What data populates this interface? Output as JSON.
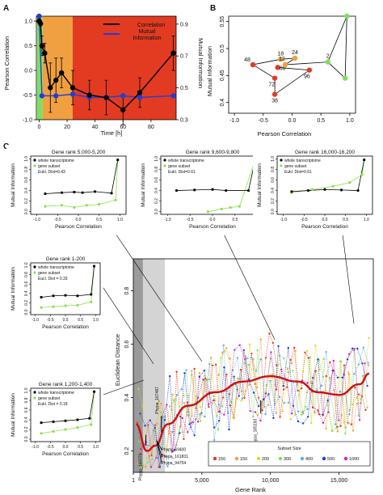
{
  "colors": {
    "correlation": "#000000",
    "mutual_information": "#1f3fd6",
    "green_zone": "#7be05c",
    "orange_zone": "#f0a040",
    "red_zone": "#e23b22",
    "whole": "#000000",
    "subset": "#8ee04a",
    "smooth": "#cc1111",
    "band_dark": "#9a9a9a",
    "band_light": "#d4d4d4"
  },
  "panel_labels": {
    "a": "A",
    "b": "B",
    "c": "C"
  },
  "chart_data": [
    {
      "id": "A",
      "type": "line",
      "xlabel": "Time [h]",
      "ylabel": "Pearson Correlation",
      "ylabel2": "Mutual Information",
      "xlim": [
        -2,
        98
      ],
      "ylim": [
        -1.0,
        1.1
      ],
      "ylim2": [
        0.3,
        0.95
      ],
      "x_ticks": [
        0,
        20,
        40,
        60,
        80
      ],
      "y_ticks": [
        -1.0,
        -0.5,
        0.0,
        0.5,
        1.0
      ],
      "y2_ticks": [
        0.3,
        0.5,
        0.7,
        0.9
      ],
      "legend": {
        "position": "top-right",
        "entries": [
          "Correlation",
          "Mutual Information"
        ]
      },
      "series": [
        {
          "name": "Correlation",
          "x": [
            0,
            1,
            2,
            4,
            8,
            12,
            16,
            24,
            36,
            48,
            60,
            72,
            96
          ],
          "y": [
            1.0,
            0.95,
            0.5,
            0.35,
            -0.35,
            -0.2,
            -0.05,
            -0.35,
            -0.5,
            -0.55,
            -0.8,
            -0.45,
            0.35
          ],
          "err": [
            0.05,
            0.05,
            0.2,
            0.2,
            0.5,
            0.45,
            0.3,
            0.35,
            0.3,
            0.35,
            0.3,
            0.3,
            0.35
          ]
        },
        {
          "name": "Mutual Information",
          "x": [
            0,
            2,
            12,
            24,
            36,
            48,
            60,
            72,
            96
          ],
          "y": [
            0.95,
            0.45,
            0.45,
            0.46,
            0.44,
            0.44,
            0.45,
            0.44,
            0.45
          ]
        }
      ],
      "shaded_regions": [
        {
          "from": -1.5,
          "to": 2.5,
          "color": "green"
        },
        {
          "from": 2.5,
          "to": 24,
          "color": "orange"
        },
        {
          "from": 24,
          "to": 98,
          "color": "red"
        }
      ]
    },
    {
      "id": "B",
      "type": "scatter",
      "xlabel": "Pearson Correlation",
      "ylabel": "Mutual Information",
      "xlim": [
        -1.1,
        1.1
      ],
      "ylim": [
        0.38,
        0.56
      ],
      "x_ticks": [
        -1.0,
        -0.5,
        0.0,
        0.5,
        1.0
      ],
      "y_ticks": [
        0.4,
        0.45,
        0.5,
        0.55
      ],
      "points": [
        {
          "label": "48",
          "x": -0.68,
          "y": 0.47,
          "color": "red"
        },
        {
          "label": "72",
          "x": -0.3,
          "y": 0.445,
          "color": "red"
        },
        {
          "label": "36",
          "x": -0.3,
          "y": 0.415,
          "color": "red"
        },
        {
          "label": "96",
          "x": 0.3,
          "y": 0.46,
          "color": "red"
        },
        {
          "label": "60",
          "x": -0.25,
          "y": 0.465,
          "color": "red"
        },
        {
          "label": "18",
          "x": -0.2,
          "y": 0.48,
          "color": "orange"
        },
        {
          "label": "24",
          "x": 0.05,
          "y": 0.482,
          "color": "orange"
        },
        {
          "label": "12",
          "x": -0.12,
          "y": 0.47,
          "color": "orange"
        },
        {
          "label": "2",
          "x": 0.62,
          "y": 0.475,
          "color": "green"
        },
        {
          "label": "",
          "x": 0.92,
          "y": 0.445,
          "color": "green"
        },
        {
          "label": "",
          "x": 0.95,
          "y": 0.56,
          "color": "green"
        }
      ],
      "path_order": [
        "",
        "2",
        "12",
        "24",
        "18",
        "48",
        "72",
        "36",
        "96",
        "60"
      ]
    },
    {
      "id": "C-main",
      "type": "line",
      "xlabel": "Gene Rank",
      "ylabel": "Euclidean Distance",
      "xlim": [
        0,
        17500
      ],
      "ylim": [
        0.12,
        0.92
      ],
      "x_ticks": [
        1,
        5000,
        10000,
        15000
      ],
      "x_tick_labels": [
        "1",
        "5,000",
        "10,000",
        "15,000"
      ],
      "y_ticks": [
        0.2,
        0.4,
        0.6,
        0.8
      ],
      "smooth_curve": {
        "x": [
          200,
          1000,
          1600,
          2500,
          4000,
          6000,
          8000,
          10000,
          12000,
          13500,
          15000,
          16500,
          17200
        ],
        "y": [
          0.3,
          0.2,
          0.22,
          0.3,
          0.37,
          0.42,
          0.46,
          0.48,
          0.46,
          0.42,
          0.41,
          0.45,
          0.49
        ]
      },
      "bands": [
        {
          "from": 0,
          "to": 700,
          "shade": "dark"
        },
        {
          "from": 700,
          "to": 2300,
          "shade": "light"
        }
      ],
      "annotations": [
        {
          "text": "Phypa_167487",
          "x": 1700,
          "y": 0.34
        },
        {
          "text": "Phypa_166070",
          "x": 800,
          "y": 0.19
        },
        {
          "text": "Phypa_69400",
          "x": 2200,
          "y": 0.2
        },
        {
          "text": "Phypa_161831",
          "x": 2200,
          "y": 0.175
        },
        {
          "text": "Phypa_94754",
          "x": 2200,
          "y": 0.15
        },
        {
          "text": "Phypa_165193",
          "x": 9000,
          "y": 0.28
        }
      ],
      "legend": {
        "title": "Subset Size",
        "entries": [
          {
            "label": "150",
            "color": "#e23b22"
          },
          {
            "label": "150",
            "color": "#f0a040"
          },
          {
            "label": "200",
            "color": "#d8d820"
          },
          {
            "label": "300",
            "color": "#7be05c"
          },
          {
            "label": "400",
            "color": "#5ab0e0"
          },
          {
            "label": "500",
            "color": "#1f3fd6"
          },
          {
            "label": "1000",
            "color": "#d020c0"
          }
        ]
      }
    },
    {
      "id": "C-insets",
      "type": "line",
      "xlabel": "Pearson Correlation",
      "ylabel": "Mutual Information",
      "legend_entries": [
        "whole transcriptome",
        "gene subset"
      ],
      "insets": [
        {
          "title": "Gene rank 5,000-5,200",
          "dist": "Eukl. Dist=0.43"
        },
        {
          "title": "Gene rank 9,600-9,800",
          "dist": "Eukl. Dist=0.61"
        },
        {
          "title": "Gene rank 16,000-16,200",
          "dist": "Eukl. Dist=0.61"
        },
        {
          "title": "Gene rank 1-200",
          "dist": "Eucl. Dist = 0.33"
        },
        {
          "title": "Gene rank 1,200-1,400",
          "dist": "Eukl. Dist = 0.18"
        }
      ],
      "y_ticks": [
        0.0,
        0.2,
        0.4,
        0.6,
        0.8,
        1.0
      ],
      "x_ticks": [
        -1.0,
        -0.5,
        0.0,
        0.5,
        1.0
      ]
    }
  ]
}
